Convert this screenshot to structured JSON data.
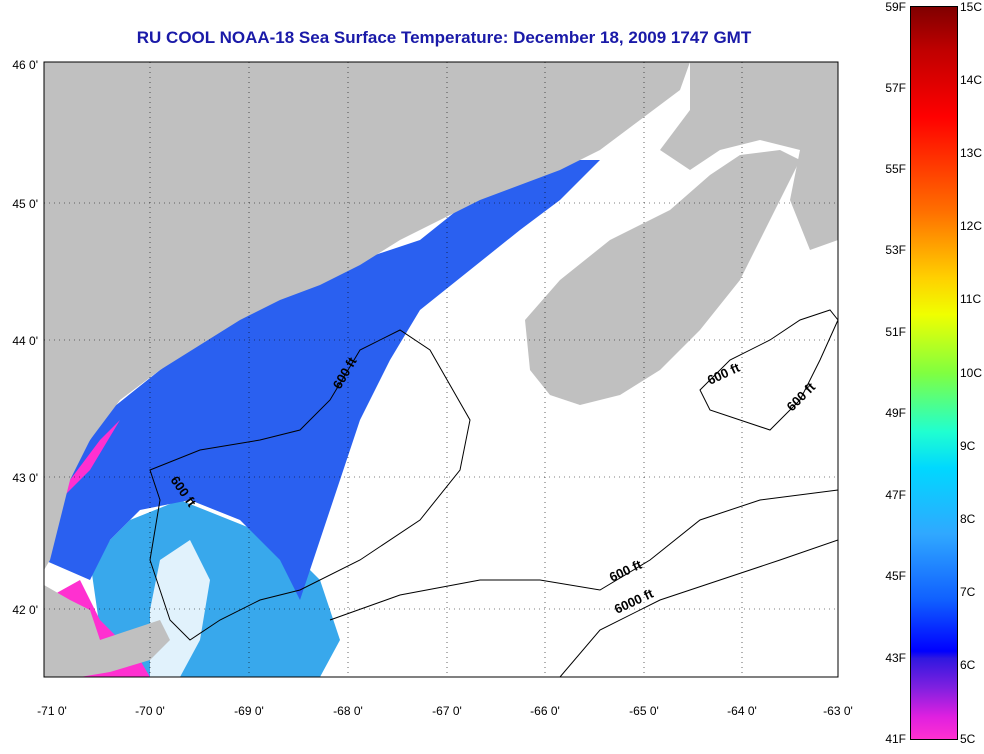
{
  "title": "RU COOL  NOAA-18  Sea Surface Temperature:  December 18, 2009 1747 GMT",
  "y_axis_labels": [
    "46 0'",
    "45 0'",
    "44 0'",
    "43 0'",
    "42 0'"
  ],
  "x_axis_labels": [
    "-71 0'",
    "-70 0'",
    "-69 0'",
    "-68 0'",
    "-67 0'",
    "-66 0'",
    "-65 0'",
    "-64 0'",
    "-63 0'"
  ],
  "contour_labels": [
    "600 ft",
    "600 ft",
    "600 ft",
    "600 ft",
    "6000 ft"
  ],
  "colorbar": {
    "fahrenheit_labels": [
      "59F",
      "57F",
      "55F",
      "53F",
      "51F",
      "49F",
      "47F",
      "45F",
      "43F",
      "41F"
    ],
    "celsius_labels": [
      "15C",
      "14C",
      "13C",
      "12C",
      "11C",
      "10C",
      "9C",
      "8C",
      "7C",
      "6C",
      "5C"
    ]
  },
  "colors": {
    "title": "#1a1aa8",
    "land": "#c0c0c0",
    "sst_cold": "#ff30d0",
    "sst_mid": "#2050ff",
    "sst_light": "#30a0f0",
    "no_data": "#ffffff"
  }
}
